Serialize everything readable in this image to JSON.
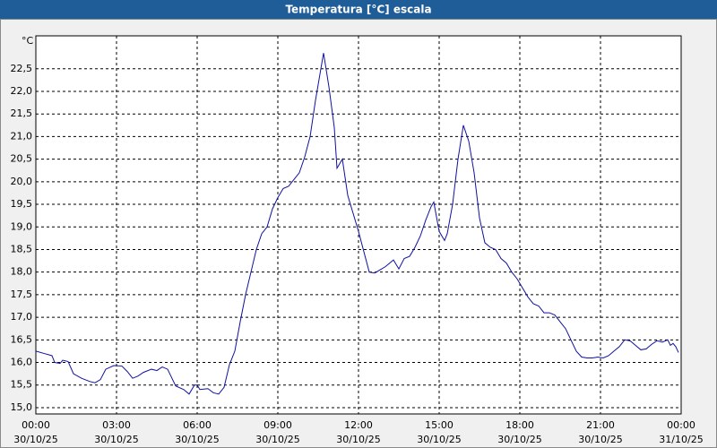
{
  "chart_data": {
    "type": "line",
    "title": "Temperatura [°C] escala",
    "y_label": "°C",
    "x": [
      0,
      0.3,
      0.6,
      0.7,
      0.9,
      1.0,
      1.2,
      1.4,
      1.7,
      2.0,
      2.2,
      2.4,
      2.6,
      2.9,
      3.2,
      3.4,
      3.6,
      3.8,
      4.0,
      4.3,
      4.5,
      4.7,
      4.9,
      5.2,
      5.5,
      5.7,
      5.9,
      6.0,
      6.1,
      6.4,
      6.6,
      6.8,
      7.0,
      7.2,
      7.4,
      7.6,
      7.8,
      8.0,
      8.2,
      8.4,
      8.6,
      8.8,
      9.0,
      9.2,
      9.4,
      9.6,
      9.8,
      10.0,
      10.2,
      10.4,
      10.6,
      10.7,
      10.9,
      11.1,
      11.2,
      11.4,
      11.6,
      11.8,
      12.0,
      12.2,
      12.4,
      12.6,
      12.8,
      13.0,
      13.2,
      13.3,
      13.5,
      13.7,
      13.9,
      14.1,
      14.3,
      14.5,
      14.7,
      14.8,
      15.0,
      15.2,
      15.3,
      15.5,
      15.7,
      15.9,
      16.1,
      16.3,
      16.5,
      16.7,
      16.9,
      17.1,
      17.3,
      17.5,
      17.7,
      17.9,
      18.1,
      18.3,
      18.5,
      18.7,
      18.9,
      19.1,
      19.3,
      19.5,
      19.7,
      19.9,
      20.1,
      20.3,
      20.5,
      20.7,
      20.9,
      21.1,
      21.3,
      21.5,
      21.7,
      21.9,
      22.1,
      22.3,
      22.5,
      22.7,
      22.9,
      23.1,
      23.3,
      23.5,
      23.6,
      23.7,
      23.8,
      23.9
    ],
    "series": [
      {
        "name": "Temperatura",
        "color": "#1010a0",
        "values": [
          16.25,
          16.2,
          16.15,
          16.0,
          15.98,
          16.05,
          16.02,
          15.75,
          15.65,
          15.58,
          15.55,
          15.62,
          15.85,
          15.93,
          15.92,
          15.8,
          15.65,
          15.7,
          15.78,
          15.85,
          15.82,
          15.9,
          15.85,
          15.48,
          15.4,
          15.3,
          15.5,
          15.5,
          15.4,
          15.42,
          15.33,
          15.3,
          15.45,
          15.95,
          16.25,
          16.9,
          17.5,
          18.0,
          18.5,
          18.85,
          19.0,
          19.4,
          19.65,
          19.85,
          19.9,
          20.05,
          20.2,
          20.55,
          21.0,
          21.8,
          22.5,
          22.85,
          22.1,
          21.2,
          20.3,
          20.5,
          19.7,
          19.3,
          18.9,
          18.45,
          18.0,
          17.98,
          18.05,
          18.12,
          18.22,
          18.27,
          18.07,
          18.3,
          18.35,
          18.55,
          18.8,
          19.15,
          19.45,
          19.55,
          18.9,
          18.7,
          18.85,
          19.5,
          20.5,
          21.25,
          20.9,
          20.2,
          19.2,
          18.65,
          18.55,
          18.5,
          18.3,
          18.2,
          18.0,
          17.85,
          17.65,
          17.45,
          17.3,
          17.25,
          17.1,
          17.1,
          17.05,
          16.9,
          16.75,
          16.5,
          16.25,
          16.12,
          16.1,
          16.1,
          16.12,
          16.1,
          16.15,
          16.25,
          16.35,
          16.5,
          16.48,
          16.38,
          16.28,
          16.3,
          16.4,
          16.48,
          16.45,
          16.5,
          16.38,
          16.42,
          16.35,
          16.22
        ]
      }
    ],
    "xlim": [
      0,
      24
    ],
    "xticks": [
      {
        "value": 0,
        "label": "00:00"
      },
      {
        "value": 3,
        "label": "03:00"
      },
      {
        "value": 6,
        "label": "06:00"
      },
      {
        "value": 9,
        "label": "09:00"
      },
      {
        "value": 12,
        "label": "12:00"
      },
      {
        "value": 15,
        "label": "15:00"
      },
      {
        "value": 18,
        "label": "18:00"
      },
      {
        "value": 21,
        "label": "21:00"
      },
      {
        "value": 24,
        "label": "00:00"
      }
    ],
    "xtick_dates": [
      "30/10/25",
      "30/10/25",
      "30/10/25",
      "30/10/25",
      "30/10/25",
      "30/10/25",
      "30/10/25",
      "30/10/25",
      "31/10/25"
    ],
    "ylim": [
      14.86,
      23.23
    ],
    "yticks": [
      {
        "value": 15,
        "label": "15,0"
      },
      {
        "value": 15.5,
        "label": "15,5"
      },
      {
        "value": 16,
        "label": "16,0"
      },
      {
        "value": 16.5,
        "label": "16,5"
      },
      {
        "value": 17,
        "label": "17,0"
      },
      {
        "value": 17.5,
        "label": "17,5"
      },
      {
        "value": 18,
        "label": "18,0"
      },
      {
        "value": 18.5,
        "label": "18,5"
      },
      {
        "value": 19,
        "label": "19,0"
      },
      {
        "value": 19.5,
        "label": "19,5"
      },
      {
        "value": 20,
        "label": "20,0"
      },
      {
        "value": 20.5,
        "label": "20,5"
      },
      {
        "value": 21,
        "label": "21,0"
      },
      {
        "value": 21.5,
        "label": "21,5"
      },
      {
        "value": 22,
        "label": "22,0"
      },
      {
        "value": 22.5,
        "label": "22,5"
      }
    ],
    "grid": true
  }
}
